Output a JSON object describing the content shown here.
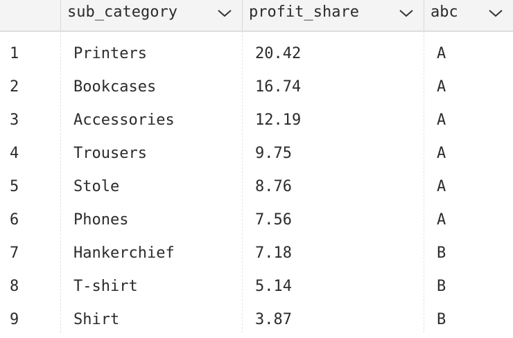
{
  "table": {
    "columns": [
      {
        "label": "sub_category"
      },
      {
        "label": "profit_share"
      },
      {
        "label": "abc"
      }
    ],
    "rows": [
      {
        "num": "1",
        "sub_category": "Printers",
        "profit_share": "20.42",
        "abc": "A"
      },
      {
        "num": "2",
        "sub_category": "Bookcases",
        "profit_share": "16.74",
        "abc": "A"
      },
      {
        "num": "3",
        "sub_category": "Accessories",
        "profit_share": "12.19",
        "abc": "A"
      },
      {
        "num": "4",
        "sub_category": "Trousers",
        "profit_share": "9.75",
        "abc": "A"
      },
      {
        "num": "5",
        "sub_category": "Stole",
        "profit_share": "8.76",
        "abc": "A"
      },
      {
        "num": "6",
        "sub_category": "Phones",
        "profit_share": "7.56",
        "abc": "A"
      },
      {
        "num": "7",
        "sub_category": "Hankerchief",
        "profit_share": "7.18",
        "abc": "B"
      },
      {
        "num": "8",
        "sub_category": "T-shirt",
        "profit_share": "5.14",
        "abc": "B"
      },
      {
        "num": "9",
        "sub_category": "Shirt",
        "profit_share": "3.87",
        "abc": "B"
      }
    ]
  },
  "icons": {
    "sort": "chevron-down-icon"
  },
  "colors": {
    "header_bg": "#f4f4f4",
    "text": "#2b2b2b",
    "divider": "#d8d8d8"
  }
}
